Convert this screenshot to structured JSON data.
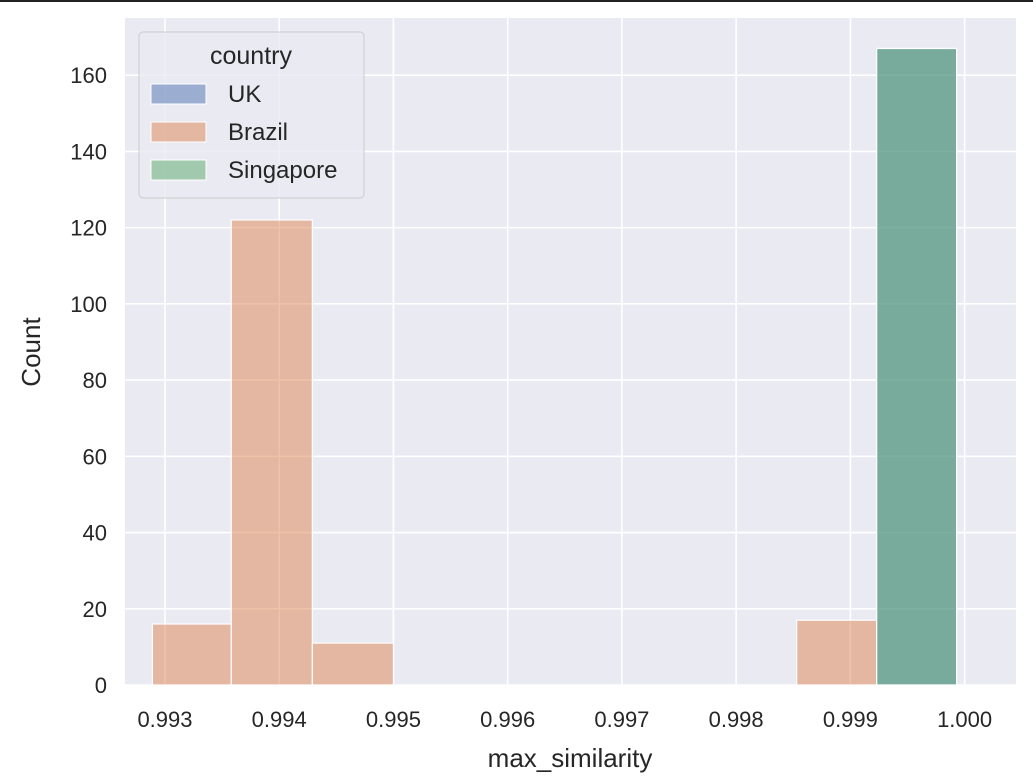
{
  "chart_data": {
    "type": "histogram",
    "title": "",
    "xlabel": "max_similarity",
    "ylabel": "Count",
    "xlim": [
      0.99265,
      1.00045
    ],
    "ylim": [
      0,
      175
    ],
    "x_ticks": [
      "0.993",
      "0.994",
      "0.995",
      "0.996",
      "0.997",
      "0.998",
      "0.999",
      "1.000"
    ],
    "x_tick_values": [
      0.993,
      0.994,
      0.995,
      0.996,
      0.997,
      0.998,
      0.999,
      1.0
    ],
    "y_ticks": [
      0,
      20,
      40,
      60,
      80,
      100,
      120,
      140,
      160
    ],
    "grid": true,
    "background": "#eaeaf2",
    "legend": {
      "title": "country",
      "placement": "top-left",
      "entries": [
        "UK",
        "Brazil",
        "Singapore"
      ]
    },
    "series": [
      {
        "name": "UK",
        "color": "#4c72b0",
        "bins": [
          {
            "x0": 0.99923,
            "x1": 0.99993,
            "count": 167
          }
        ]
      },
      {
        "name": "Brazil",
        "color": "#dd8452",
        "bins": [
          {
            "x0": 0.99289,
            "x1": 0.99358,
            "count": 16
          },
          {
            "x0": 0.99358,
            "x1": 0.99429,
            "count": 122
          },
          {
            "x0": 0.99429,
            "x1": 0.995,
            "count": 11
          },
          {
            "x0": 0.99853,
            "x1": 0.99923,
            "count": 17
          }
        ]
      },
      {
        "name": "Singapore",
        "color": "#55a868",
        "bins": [
          {
            "x0": 0.99923,
            "x1": 0.99993,
            "count": 167
          }
        ]
      }
    ]
  }
}
